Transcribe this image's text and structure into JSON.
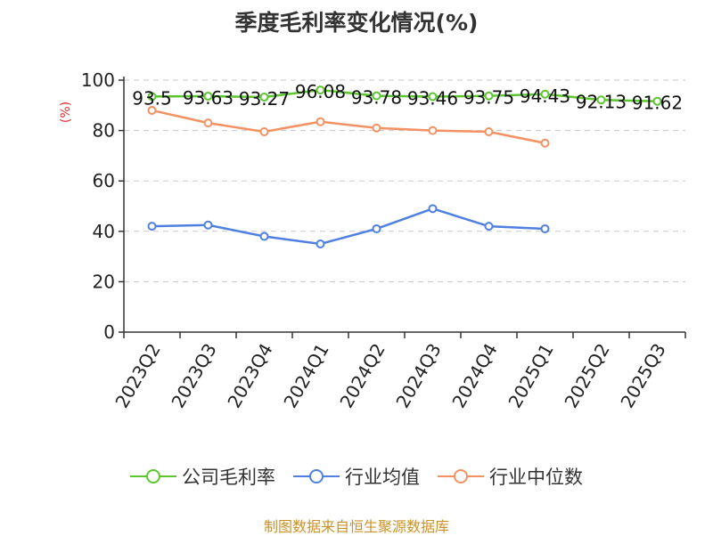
{
  "chart_data": {
    "type": "line",
    "title": "季度毛利率变化情况(%)",
    "ylabel": "(%)",
    "xlabel": "",
    "ylim": [
      0,
      100
    ],
    "yticks": [
      0,
      20,
      40,
      60,
      80,
      100
    ],
    "grid": true,
    "categories": [
      "2023Q2",
      "2023Q3",
      "2023Q4",
      "2024Q1",
      "2024Q2",
      "2024Q3",
      "2024Q4",
      "2025Q1",
      "2025Q2",
      "2025Q3"
    ],
    "series": [
      {
        "name": "公司毛利率",
        "color": "#5cc52f",
        "values": [
          93.5,
          93.63,
          93.27,
          96.08,
          93.78,
          93.46,
          93.75,
          94.43,
          92.13,
          91.62
        ],
        "labels": [
          "93.5",
          "93.63",
          "93.27",
          "96.08",
          "93.78",
          "93.46",
          "93.75",
          "94.43",
          "92.13",
          "91.62"
        ]
      },
      {
        "name": "行业均值",
        "color": "#4f80e1",
        "values": [
          42,
          42.5,
          38,
          35,
          41,
          49,
          42,
          41,
          null,
          null
        ]
      },
      {
        "name": "行业中位数",
        "color": "#f49162",
        "values": [
          88,
          83,
          79.5,
          83.5,
          81,
          80,
          79.5,
          75,
          null,
          null
        ]
      }
    ]
  },
  "source": "制图数据来自恒生聚源数据库"
}
